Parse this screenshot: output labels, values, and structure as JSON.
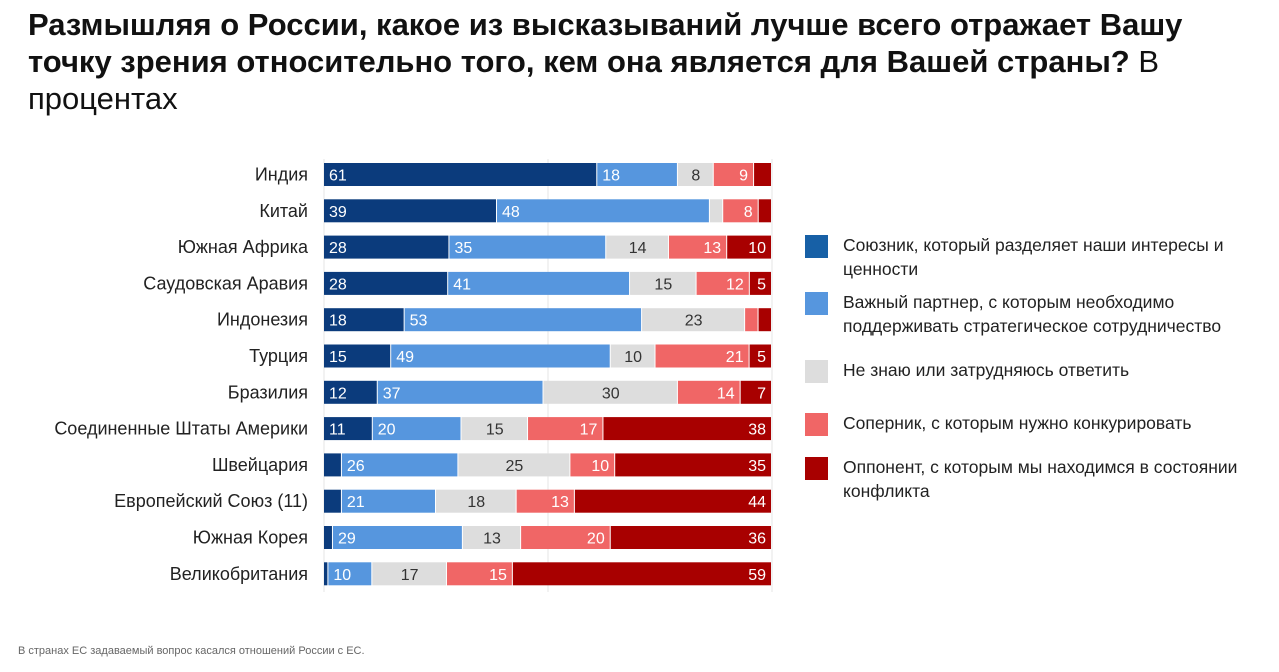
{
  "title": {
    "bold": "Размышляя о России, какое из высказываний лучше всего отражает Вашу точку зрения относительно того, кем она является для Вашей страны?",
    "suffix": " В процентах"
  },
  "footnote": "В странах ЕС задаваемый вопрос касался отношений России с ЕС.",
  "chart_data": {
    "type": "bar",
    "orientation": "horizontal",
    "stacked": true,
    "unit": "%",
    "xlim": [
      0,
      100
    ],
    "grid": "vertical lines at 0, 50, 100",
    "legend_placement": "right",
    "categories": [
      "Индия",
      "Китай",
      "Южная Африка",
      "Саудовская Аравия",
      "Индонезия",
      "Турция",
      "Бразилия",
      "Соединенные Штаты Америки",
      "Швейцария",
      "Европейский Союз (11)",
      "Южная Корея",
      "Великобритания"
    ],
    "series": [
      {
        "name": "Союзник, который разделяет наши интересы и ценности",
        "color": "#0b3b7c",
        "values": [
          61,
          39,
          28,
          28,
          18,
          15,
          12,
          11,
          4,
          4,
          2,
          1
        ]
      },
      {
        "name": "Важный партнер, с которым необходимо поддерживать стратегическое сотрудничество",
        "color": "#5696de",
        "values": [
          18,
          48,
          35,
          41,
          53,
          49,
          37,
          20,
          26,
          21,
          29,
          10
        ]
      },
      {
        "name": "Не знаю или затрудняюсь ответить",
        "color": "#dddddd",
        "values": [
          8,
          3,
          14,
          15,
          23,
          10,
          30,
          15,
          25,
          18,
          13,
          17
        ]
      },
      {
        "name": "Соперник, с которым нужно конкурировать",
        "color": "#f06666",
        "values": [
          9,
          8,
          13,
          12,
          3,
          21,
          14,
          17,
          10,
          13,
          20,
          15
        ]
      },
      {
        "name": "Оппонент, с которым мы находимся в состоянии конфликта",
        "color": "#a80000",
        "values": [
          4,
          3,
          10,
          5,
          3,
          5,
          7,
          38,
          35,
          44,
          36,
          59
        ]
      }
    ],
    "legend_colors": [
      "#1760a6",
      "#5696de",
      "#dddddd",
      "#f06666",
      "#a80000"
    ]
  }
}
